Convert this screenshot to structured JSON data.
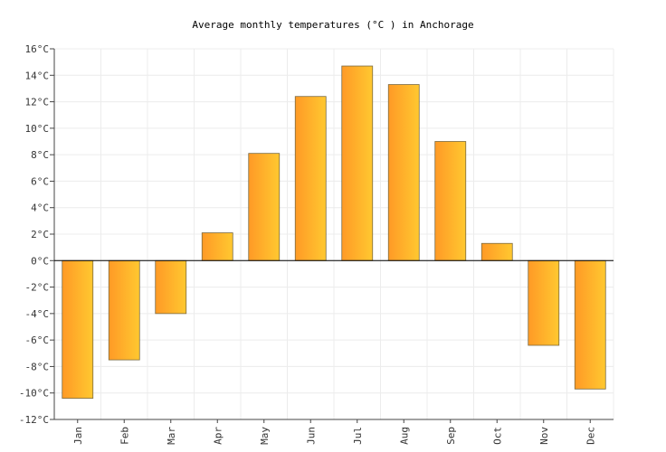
{
  "chart_data": {
    "type": "bar",
    "title": "Average monthly temperatures (°C ) in Anchorage",
    "categories": [
      "Jan",
      "Feb",
      "Mar",
      "Apr",
      "May",
      "Jun",
      "Jul",
      "Aug",
      "Sep",
      "Oct",
      "Nov",
      "Dec"
    ],
    "values": [
      -10.4,
      -7.5,
      -4.0,
      2.1,
      8.1,
      12.4,
      14.7,
      13.3,
      9.0,
      1.3,
      -6.4,
      -9.7
    ],
    "ylim": [
      -12,
      16
    ],
    "ytick_step": 2,
    "ytick_suffix": "°C",
    "grid": true,
    "colors": {
      "bar_left": "#ff9a26",
      "bar_right": "#ffc830",
      "bar_stroke": "#7a6a40"
    }
  }
}
